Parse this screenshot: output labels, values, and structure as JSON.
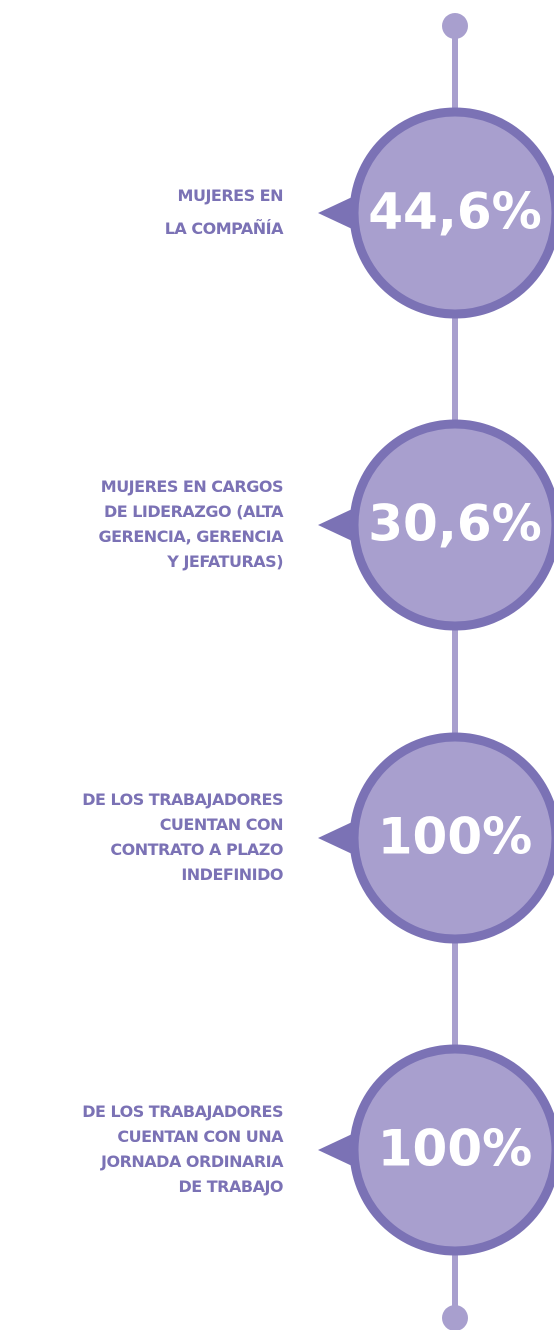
{
  "items": [
    {
      "value": "44,6%",
      "label": [
        "MUJERES EN",
        "LA COMPAÑÍA"
      ]
    },
    {
      "value": "30,6%",
      "label": [
        "MUJERES EN CARGOS",
        "DE LIDERAZGO (ALTA",
        "GERENCIA, GERENCIA",
        "Y JEFATURAS)"
      ]
    },
    {
      "value": "100%",
      "label": [
        "DE LOS TRABAJADORES",
        "CUENTAN CON",
        "CONTRATO A PLAZO",
        "INDEFINIDO"
      ]
    },
    {
      "value": "100%",
      "label": [
        "DE LOS TRABAJADORES",
        "CUENTAN CON UNA",
        "JORNADA ORDINARIA",
        "DE TRABAJO"
      ]
    }
  ]
}
